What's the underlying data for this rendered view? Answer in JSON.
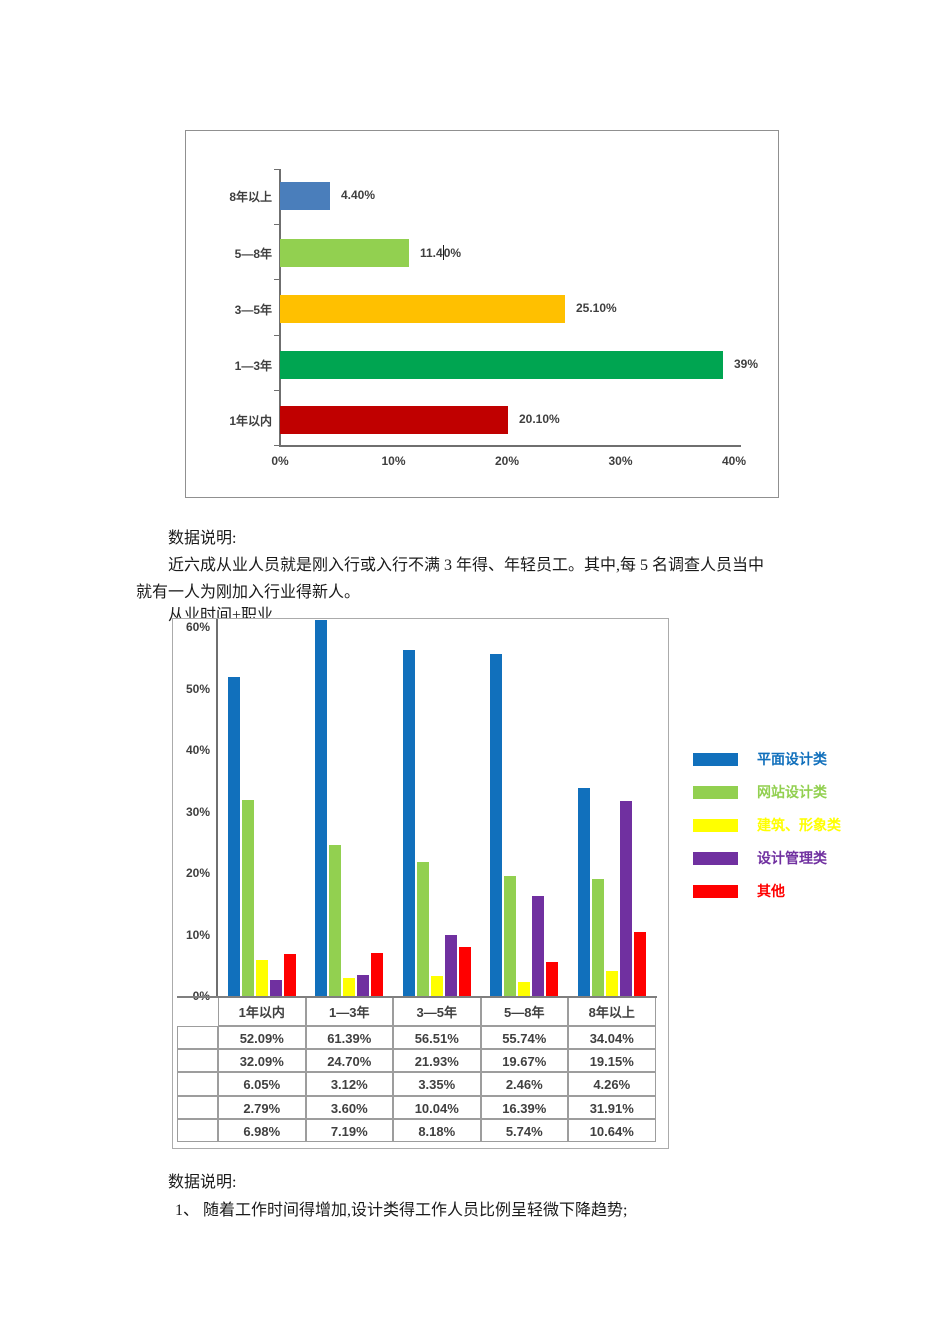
{
  "document": {
    "notes1": {
      "heading": "数据说明:",
      "line1": "近六成从业人员就是刚入行或入行不满 3 年得、年轻员工。其中,每 5 名调查人员当中",
      "line2": "就有一人为刚加入行业得新人。"
    },
    "chart2_title": "从业时间+职业",
    "notes2": {
      "heading": "数据说明:",
      "item1": "1、 随着工作时间得增加,设计类得工作人员比例呈轻微下降趋势;"
    }
  },
  "chart_data": [
    {
      "type": "bar",
      "orientation": "horizontal",
      "title": "",
      "categories": [
        "8年以上",
        "5—8年",
        "3—5年",
        "1—3年",
        "1年以内"
      ],
      "values": [
        4.4,
        11.4,
        25.1,
        39,
        20.1
      ],
      "value_labels": [
        "4.40%",
        "11.40%",
        "25.10%",
        "39%",
        "20.10%"
      ],
      "bar_colors": [
        "#4a7ebb",
        "#92d050",
        "#ffc000",
        "#00a551",
        "#c00000"
      ],
      "x_ticks": [
        "0%",
        "10%",
        "20%",
        "30%",
        "40%"
      ],
      "xlim": [
        0,
        40
      ],
      "grid": false,
      "legend_shown": false,
      "text_cursor": {
        "bar_index": 1,
        "char_offset": 4
      }
    },
    {
      "type": "bar",
      "orientation": "vertical",
      "grouped": true,
      "title": "从业时间+职业",
      "categories": [
        "1年以内",
        "1—3年",
        "3—5年",
        "5—8年",
        "8年以上"
      ],
      "series": [
        {
          "name": "平面设计类",
          "color": "#1170bc",
          "values": [
            52.09,
            61.39,
            56.51,
            55.74,
            34.04
          ],
          "value_labels": [
            "52.09%",
            "61.39%",
            "56.51%",
            "55.74%",
            "34.04%"
          ]
        },
        {
          "name": "网站设计类",
          "color": "#92d050",
          "values": [
            32.09,
            24.7,
            21.93,
            19.67,
            19.15
          ],
          "value_labels": [
            "32.09%",
            "24.70%",
            "21.93%",
            "19.67%",
            "19.15%"
          ]
        },
        {
          "name": "建筑、形象类",
          "color": "#ffff00",
          "values": [
            6.05,
            3.12,
            3.35,
            2.46,
            4.26
          ],
          "value_labels": [
            "6.05%",
            "3.12%",
            "3.35%",
            "2.46%",
            "4.26%"
          ]
        },
        {
          "name": "设计管理类",
          "color": "#7030a0",
          "values": [
            2.79,
            3.6,
            10.04,
            16.39,
            31.91
          ],
          "value_labels": [
            "2.79%",
            "3.60%",
            "10.04%",
            "16.39%",
            "31.91%"
          ]
        },
        {
          "name": "其他",
          "color": "#ff0000",
          "values": [
            6.98,
            7.19,
            8.18,
            5.74,
            10.64
          ],
          "value_labels": [
            "6.98%",
            "7.19%",
            "8.18%",
            "5.74%",
            "10.64%"
          ]
        }
      ],
      "y_ticks": [
        "0%",
        "10%",
        "20%",
        "30%",
        "40%",
        "50%",
        "60%"
      ],
      "ylim": [
        0,
        60
      ],
      "grid": false,
      "legend_position": "right",
      "data_table_shown": true
    }
  ]
}
